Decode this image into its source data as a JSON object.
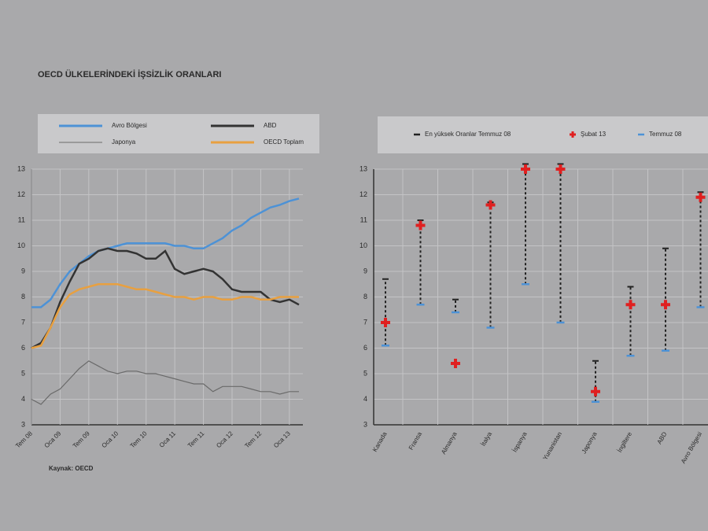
{
  "title": "OECD ÜLKELERİNDEKİ İŞSİZLİK ORANLARI",
  "source": "Kaynak: OECD",
  "chart_data": [
    {
      "type": "line",
      "categories": [
        "Tem 08",
        null,
        null,
        "Oca 09",
        null,
        null,
        "Tem 09",
        null,
        null,
        "Oca 10",
        null,
        null,
        "Tem 10",
        null,
        null,
        "Oca 11",
        null,
        null,
        "Tem 11",
        null,
        null,
        "Oca 12",
        null,
        null,
        "Tem 12",
        null,
        null,
        "Oca 13",
        null
      ],
      "series": [
        {
          "name": "Avro Bölgesi",
          "color": "#4d92d6",
          "values": [
            7.6,
            7.6,
            7.9,
            8.5,
            9.0,
            9.3,
            9.6,
            9.8,
            9.9,
            10.0,
            10.1,
            10.1,
            10.1,
            10.1,
            10.1,
            10.0,
            10.0,
            9.9,
            9.9,
            10.1,
            10.3,
            10.6,
            10.8,
            11.1,
            11.3,
            11.5,
            11.6,
            11.75,
            11.85
          ]
        },
        {
          "name": "ABD",
          "color": "#333333",
          "values": [
            6.0,
            6.2,
            6.8,
            7.8,
            8.6,
            9.3,
            9.5,
            9.8,
            9.9,
            9.8,
            9.8,
            9.7,
            9.5,
            9.5,
            9.8,
            9.1,
            8.9,
            9.0,
            9.1,
            9.0,
            8.7,
            8.3,
            8.2,
            8.2,
            8.2,
            7.9,
            7.8,
            7.9,
            7.7
          ]
        },
        {
          "name": "Japonya",
          "color": "#6a6a6a",
          "values": [
            4.0,
            3.8,
            4.2,
            4.4,
            4.8,
            5.2,
            5.5,
            5.3,
            5.1,
            5.0,
            5.1,
            5.1,
            5.0,
            5.0,
            4.9,
            4.8,
            4.7,
            4.6,
            4.6,
            4.3,
            4.5,
            4.5,
            4.5,
            4.4,
            4.3,
            4.3,
            4.2,
            4.3,
            4.3
          ]
        },
        {
          "name": "OECD Toplam",
          "color": "#e8a040",
          "values": [
            6.0,
            6.1,
            6.8,
            7.6,
            8.1,
            8.3,
            8.4,
            8.5,
            8.5,
            8.5,
            8.4,
            8.3,
            8.3,
            8.2,
            8.1,
            8.0,
            8.0,
            7.9,
            8.0,
            8.0,
            7.9,
            7.9,
            8.0,
            8.0,
            7.9,
            7.9,
            8.0,
            8.0,
            8.0
          ]
        }
      ],
      "ylim": [
        3,
        13
      ],
      "yticks": [
        3,
        4,
        5,
        6,
        7,
        8,
        9,
        10,
        11,
        12,
        13
      ],
      "grid": true
    },
    {
      "type": "range",
      "categories": [
        "Kanada",
        "Fransa",
        "Almanya",
        "İtalya",
        "İspanya",
        "Yunanistan",
        "Japonya",
        "İngiltere",
        "ABD",
        "Avro Bölgesi"
      ],
      "series": [
        {
          "name": "En yüksek Oranlar Temmuz 08",
          "color": "#222222",
          "values": [
            8.7,
            11.0,
            7.9,
            11.7,
            13.2,
            13.2,
            5.5,
            8.4,
            9.9,
            12.1
          ]
        },
        {
          "name": "Şubat 13",
          "color": "#e02020",
          "values": [
            7.0,
            10.8,
            5.4,
            11.6,
            13.0,
            13.0,
            4.3,
            7.7,
            7.7,
            11.9
          ]
        },
        {
          "name": "Temmuz 08",
          "color": "#4d92d6",
          "values": [
            6.1,
            7.7,
            7.4,
            6.8,
            8.5,
            7.0,
            3.9,
            5.7,
            5.9,
            7.6
          ]
        }
      ],
      "ylim": [
        3,
        13
      ],
      "yticks": [
        3,
        4,
        5,
        6,
        7,
        8,
        9,
        10,
        11,
        12,
        13
      ],
      "grid": true
    }
  ]
}
